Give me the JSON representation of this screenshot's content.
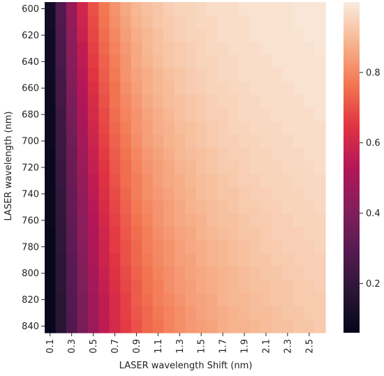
{
  "chart_data": {
    "type": "heatmap",
    "title": "",
    "xlabel": "LASER wavelength Shift (nm)",
    "ylabel": "LASER wavelength (nm)",
    "x": [
      0.1,
      0.2,
      0.3,
      0.4,
      0.5,
      0.6,
      0.7,
      0.8,
      0.9,
      1.0,
      1.1,
      1.2,
      1.3,
      1.4,
      1.5,
      1.6,
      1.7,
      1.8,
      1.9,
      2.0,
      2.1,
      2.2,
      2.3,
      2.4,
      2.5,
      2.6
    ],
    "y": [
      600,
      610,
      620,
      630,
      640,
      650,
      660,
      670,
      680,
      690,
      700,
      710,
      720,
      730,
      740,
      750,
      760,
      770,
      780,
      790,
      800,
      810,
      820,
      830,
      840
    ],
    "x_tick_labels": [
      "0.1",
      "0.3",
      "0.5",
      "0.7",
      "0.9",
      "1.1",
      "1.3",
      "1.5",
      "1.7",
      "1.9",
      "2.1",
      "2.3",
      "2.5"
    ],
    "y_tick_labels": [
      "600",
      "620",
      "640",
      "660",
      "680",
      "700",
      "720",
      "740",
      "760",
      "780",
      "800",
      "820",
      "840"
    ],
    "colorbar": {
      "ticks": [
        0.2,
        0.4,
        0.6,
        0.8
      ],
      "tick_labels": [
        "0.2",
        "0.4",
        "0.6",
        "0.8"
      ],
      "range": [
        0.06,
        1.0
      ],
      "colormap": "rocket"
    },
    "values": [
      [
        0.11,
        0.28,
        0.46,
        0.6,
        0.7,
        0.77,
        0.82,
        0.86,
        0.89,
        0.91,
        0.92,
        0.94,
        0.95,
        0.95,
        0.96,
        0.97,
        0.97,
        0.97,
        0.98,
        0.98,
        0.98,
        0.98,
        0.98,
        0.99,
        0.99,
        0.99
      ],
      [
        0.11,
        0.28,
        0.45,
        0.59,
        0.69,
        0.76,
        0.81,
        0.85,
        0.88,
        0.9,
        0.92,
        0.93,
        0.94,
        0.95,
        0.96,
        0.96,
        0.97,
        0.97,
        0.97,
        0.98,
        0.98,
        0.98,
        0.98,
        0.99,
        0.99,
        0.99
      ],
      [
        0.1,
        0.27,
        0.44,
        0.58,
        0.68,
        0.75,
        0.8,
        0.84,
        0.87,
        0.89,
        0.91,
        0.93,
        0.94,
        0.95,
        0.95,
        0.96,
        0.97,
        0.97,
        0.97,
        0.98,
        0.98,
        0.98,
        0.98,
        0.98,
        0.99,
        0.99
      ],
      [
        0.1,
        0.26,
        0.43,
        0.56,
        0.67,
        0.74,
        0.79,
        0.83,
        0.86,
        0.89,
        0.91,
        0.92,
        0.93,
        0.94,
        0.95,
        0.96,
        0.96,
        0.97,
        0.97,
        0.97,
        0.98,
        0.98,
        0.98,
        0.98,
        0.98,
        0.99
      ],
      [
        0.1,
        0.26,
        0.42,
        0.55,
        0.66,
        0.73,
        0.78,
        0.82,
        0.86,
        0.88,
        0.9,
        0.92,
        0.93,
        0.94,
        0.95,
        0.95,
        0.96,
        0.96,
        0.97,
        0.97,
        0.97,
        0.98,
        0.98,
        0.98,
        0.98,
        0.98
      ],
      [
        0.1,
        0.25,
        0.41,
        0.54,
        0.65,
        0.72,
        0.77,
        0.82,
        0.85,
        0.87,
        0.89,
        0.91,
        0.92,
        0.93,
        0.94,
        0.95,
        0.96,
        0.96,
        0.97,
        0.97,
        0.97,
        0.97,
        0.98,
        0.98,
        0.98,
        0.98
      ],
      [
        0.09,
        0.24,
        0.4,
        0.53,
        0.63,
        0.71,
        0.76,
        0.81,
        0.84,
        0.87,
        0.89,
        0.9,
        0.92,
        0.93,
        0.94,
        0.95,
        0.95,
        0.96,
        0.96,
        0.97,
        0.97,
        0.97,
        0.97,
        0.98,
        0.98,
        0.98
      ],
      [
        0.09,
        0.24,
        0.39,
        0.52,
        0.62,
        0.7,
        0.76,
        0.8,
        0.83,
        0.86,
        0.88,
        0.9,
        0.91,
        0.92,
        0.93,
        0.94,
        0.95,
        0.95,
        0.96,
        0.96,
        0.97,
        0.97,
        0.97,
        0.97,
        0.98,
        0.98
      ],
      [
        0.09,
        0.23,
        0.38,
        0.51,
        0.61,
        0.69,
        0.75,
        0.79,
        0.82,
        0.85,
        0.87,
        0.89,
        0.91,
        0.92,
        0.93,
        0.94,
        0.94,
        0.95,
        0.96,
        0.96,
        0.96,
        0.97,
        0.97,
        0.97,
        0.97,
        0.98
      ],
      [
        0.09,
        0.23,
        0.37,
        0.5,
        0.6,
        0.68,
        0.74,
        0.78,
        0.82,
        0.84,
        0.87,
        0.88,
        0.9,
        0.91,
        0.92,
        0.93,
        0.94,
        0.95,
        0.95,
        0.96,
        0.96,
        0.96,
        0.97,
        0.97,
        0.97,
        0.97
      ],
      [
        0.09,
        0.22,
        0.36,
        0.49,
        0.59,
        0.67,
        0.73,
        0.77,
        0.81,
        0.84,
        0.86,
        0.88,
        0.89,
        0.91,
        0.92,
        0.93,
        0.94,
        0.94,
        0.95,
        0.95,
        0.96,
        0.96,
        0.96,
        0.97,
        0.97,
        0.97
      ],
      [
        0.08,
        0.22,
        0.35,
        0.48,
        0.58,
        0.66,
        0.72,
        0.76,
        0.8,
        0.83,
        0.85,
        0.87,
        0.89,
        0.9,
        0.91,
        0.92,
        0.93,
        0.94,
        0.94,
        0.95,
        0.95,
        0.96,
        0.96,
        0.96,
        0.97,
        0.97
      ],
      [
        0.08,
        0.21,
        0.35,
        0.47,
        0.57,
        0.65,
        0.71,
        0.75,
        0.79,
        0.82,
        0.84,
        0.86,
        0.88,
        0.89,
        0.91,
        0.92,
        0.93,
        0.93,
        0.94,
        0.95,
        0.95,
        0.95,
        0.96,
        0.96,
        0.96,
        0.97
      ],
      [
        0.08,
        0.21,
        0.34,
        0.46,
        0.56,
        0.64,
        0.7,
        0.75,
        0.78,
        0.81,
        0.84,
        0.86,
        0.87,
        0.89,
        0.9,
        0.91,
        0.92,
        0.93,
        0.94,
        0.94,
        0.95,
        0.95,
        0.95,
        0.96,
        0.96,
        0.96
      ],
      [
        0.08,
        0.2,
        0.33,
        0.45,
        0.55,
        0.63,
        0.69,
        0.74,
        0.78,
        0.81,
        0.83,
        0.85,
        0.87,
        0.88,
        0.9,
        0.91,
        0.92,
        0.92,
        0.93,
        0.94,
        0.94,
        0.95,
        0.95,
        0.95,
        0.96,
        0.96
      ],
      [
        0.08,
        0.2,
        0.33,
        0.44,
        0.54,
        0.62,
        0.68,
        0.73,
        0.77,
        0.8,
        0.82,
        0.84,
        0.86,
        0.88,
        0.89,
        0.9,
        0.91,
        0.92,
        0.93,
        0.93,
        0.94,
        0.94,
        0.95,
        0.95,
        0.95,
        0.96
      ],
      [
        0.08,
        0.19,
        0.32,
        0.43,
        0.53,
        0.61,
        0.67,
        0.72,
        0.76,
        0.79,
        0.82,
        0.84,
        0.86,
        0.87,
        0.88,
        0.9,
        0.91,
        0.91,
        0.92,
        0.93,
        0.93,
        0.94,
        0.94,
        0.95,
        0.95,
        0.95
      ],
      [
        0.07,
        0.19,
        0.31,
        0.43,
        0.52,
        0.6,
        0.66,
        0.71,
        0.75,
        0.78,
        0.81,
        0.83,
        0.85,
        0.86,
        0.88,
        0.89,
        0.9,
        0.91,
        0.92,
        0.92,
        0.93,
        0.94,
        0.94,
        0.94,
        0.95,
        0.95
      ],
      [
        0.07,
        0.19,
        0.31,
        0.42,
        0.52,
        0.59,
        0.66,
        0.7,
        0.74,
        0.78,
        0.8,
        0.82,
        0.84,
        0.86,
        0.87,
        0.88,
        0.89,
        0.9,
        0.91,
        0.92,
        0.93,
        0.93,
        0.94,
        0.94,
        0.94,
        0.95
      ],
      [
        0.07,
        0.18,
        0.3,
        0.41,
        0.51,
        0.59,
        0.65,
        0.7,
        0.74,
        0.77,
        0.8,
        0.82,
        0.84,
        0.85,
        0.87,
        0.88,
        0.89,
        0.9,
        0.91,
        0.92,
        0.92,
        0.93,
        0.93,
        0.94,
        0.94,
        0.94
      ],
      [
        0.07,
        0.18,
        0.3,
        0.4,
        0.5,
        0.58,
        0.64,
        0.69,
        0.73,
        0.76,
        0.79,
        0.81,
        0.83,
        0.85,
        0.86,
        0.87,
        0.88,
        0.89,
        0.9,
        0.91,
        0.92,
        0.92,
        0.93,
        0.93,
        0.94,
        0.94
      ],
      [
        0.07,
        0.18,
        0.29,
        0.4,
        0.49,
        0.57,
        0.63,
        0.68,
        0.72,
        0.76,
        0.78,
        0.81,
        0.83,
        0.84,
        0.86,
        0.87,
        0.88,
        0.89,
        0.9,
        0.91,
        0.91,
        0.92,
        0.92,
        0.93,
        0.93,
        0.94
      ],
      [
        0.07,
        0.17,
        0.29,
        0.39,
        0.48,
        0.56,
        0.62,
        0.67,
        0.72,
        0.75,
        0.78,
        0.8,
        0.82,
        0.84,
        0.85,
        0.86,
        0.88,
        0.89,
        0.89,
        0.9,
        0.91,
        0.92,
        0.92,
        0.93,
        0.93,
        0.93
      ],
      [
        0.07,
        0.17,
        0.28,
        0.39,
        0.48,
        0.56,
        0.62,
        0.67,
        0.71,
        0.74,
        0.77,
        0.79,
        0.81,
        0.83,
        0.85,
        0.86,
        0.87,
        0.88,
        0.89,
        0.9,
        0.9,
        0.91,
        0.92,
        0.92,
        0.93,
        0.93
      ],
      [
        0.07,
        0.17,
        0.28,
        0.38,
        0.47,
        0.55,
        0.61,
        0.66,
        0.7,
        0.74,
        0.76,
        0.79,
        0.81,
        0.83,
        0.84,
        0.85,
        0.87,
        0.88,
        0.88,
        0.89,
        0.9,
        0.91,
        0.91,
        0.92,
        0.92,
        0.93
      ]
    ]
  }
}
